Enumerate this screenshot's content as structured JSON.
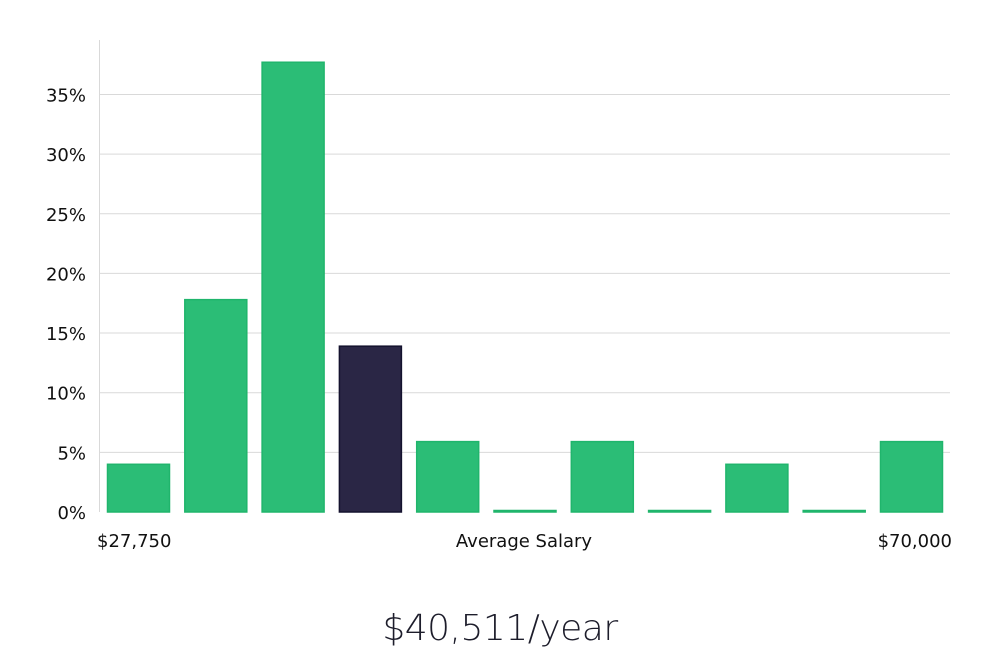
{
  "chart_data": {
    "type": "bar",
    "title": "",
    "xlabel": "Average Salary",
    "ylabel": "",
    "x_start_label": "$27,750",
    "x_end_label": "$70,000",
    "ylim": [
      0,
      39.5
    ],
    "yticks": [
      0,
      5,
      10,
      15,
      20,
      25,
      30,
      35
    ],
    "ytick_labels": [
      "0%",
      "5%",
      "10%",
      "15%",
      "20%",
      "25%",
      "30%",
      "35%"
    ],
    "values": [
      4,
      17.8,
      37.7,
      13.9,
      5.9,
      0,
      5.9,
      0,
      4,
      0,
      5.9
    ],
    "highlight_index": 3,
    "grid": true,
    "colors": {
      "bar": "#2bbd76",
      "bar_edge": "#20b56c",
      "highlight": "#2a2645",
      "highlight_edge": "#14122e"
    }
  },
  "headline": "$40,511/year"
}
